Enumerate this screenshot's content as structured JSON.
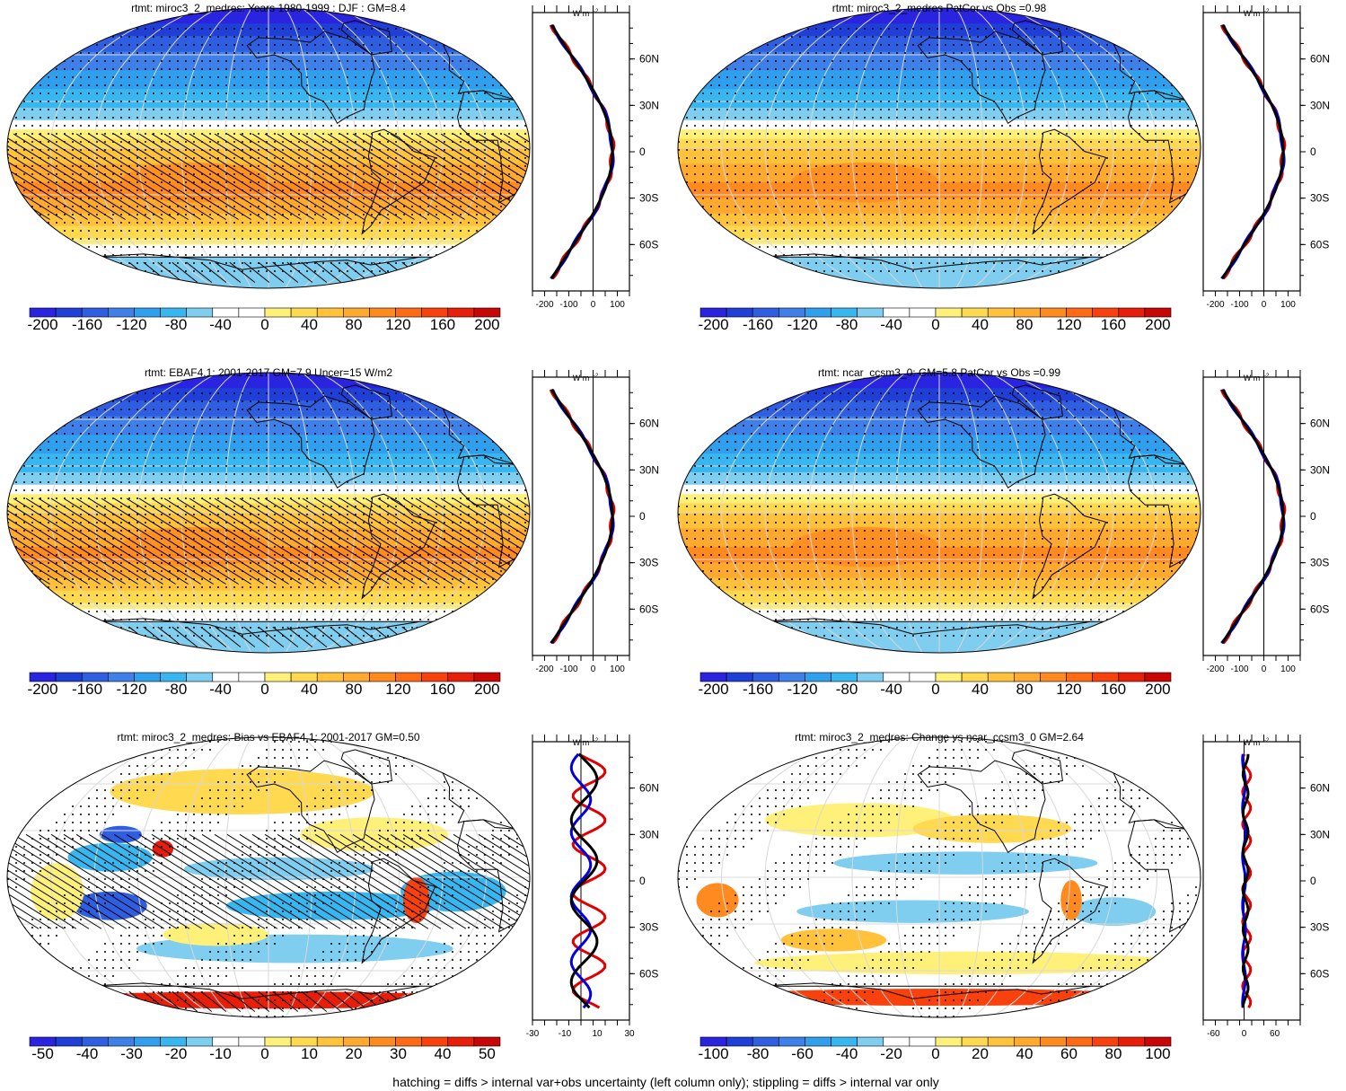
{
  "footer": "hatching = diffs > internal var+obs uncertainty (left column only); stippling = diffs > internal var only",
  "units_label": "W m",
  "units_exp": "-2",
  "lat_ticks": [
    "60N",
    "30N",
    "0",
    "30S",
    "60S"
  ],
  "panels": [
    {
      "title": "rtmt: miroc3_2_medres: Years 1980-1999 : DJF : GM=8.4",
      "kind": "full",
      "hatched": true,
      "cbar_labels": [
        "-200",
        "-160",
        "-120",
        "-80",
        "-40",
        "0",
        "40",
        "80",
        "120",
        "160",
        "200"
      ],
      "zonal_ticks": [
        "-200",
        "-100",
        "0",
        "100"
      ]
    },
    {
      "title": "rtmt: miroc3_2_medres PatCor vs Obs =0.98",
      "kind": "full",
      "hatched": false,
      "cbar_labels": [
        "-200",
        "-160",
        "-120",
        "-80",
        "-40",
        "0",
        "40",
        "80",
        "120",
        "160",
        "200"
      ],
      "zonal_ticks": [
        "-200",
        "-100",
        "0",
        "100"
      ]
    },
    {
      "title": "rtmt: EBAF4.1: 2001-2017 GM=7.9 Uncer=15 W/m2",
      "kind": "full",
      "hatched": true,
      "cbar_labels": [
        "-200",
        "-160",
        "-120",
        "-80",
        "-40",
        "0",
        "40",
        "80",
        "120",
        "160",
        "200"
      ],
      "zonal_ticks": [
        "-200",
        "-100",
        "0",
        "100"
      ]
    },
    {
      "title": "rtmt: ncar_ccsm3_0: GM=5.8 PatCor vs Obs =0.99",
      "kind": "full",
      "hatched": false,
      "cbar_labels": [
        "-200",
        "-160",
        "-120",
        "-80",
        "-40",
        "0",
        "40",
        "80",
        "120",
        "160",
        "200"
      ],
      "zonal_ticks": [
        "-200",
        "-100",
        "0",
        "100"
      ]
    },
    {
      "title": "rtmt: miroc3_2_medres: Bias vs EBAF4.1: 2001-2017 GM=0.50",
      "kind": "bias",
      "hatched": true,
      "cbar_labels": [
        "-50",
        "-40",
        "-30",
        "-20",
        "-10",
        "0",
        "10",
        "20",
        "30",
        "40",
        "50"
      ],
      "zonal_ticks": [
        "-30",
        "-10",
        "10",
        "30"
      ]
    },
    {
      "title": "rtmt: miroc3_2_medres: Change vs ncar_ccsm3_0 GM=2.64",
      "kind": "change",
      "hatched": false,
      "cbar_labels": [
        "-100",
        "-80",
        "-60",
        "-40",
        "-20",
        "0",
        "20",
        "40",
        "60",
        "80",
        "100"
      ],
      "zonal_ticks": [
        "-60",
        "0",
        "60"
      ]
    }
  ],
  "colorbar_colors": [
    "#2a24e0",
    "#1f3fd6",
    "#2f5fe0",
    "#3f80e8",
    "#2f9fee",
    "#38b6f0",
    "#7fcdef",
    "#ffffff",
    "#ffffff",
    "#fff07a",
    "#ffd94f",
    "#ffc23a",
    "#ffa92e",
    "#ff8a1f",
    "#ff6a14",
    "#f8410d",
    "#e61e0a",
    "#c90606"
  ],
  "line_colors": {
    "model": "#e00000",
    "obs": "#0000e0",
    "other": "#000000"
  }
}
